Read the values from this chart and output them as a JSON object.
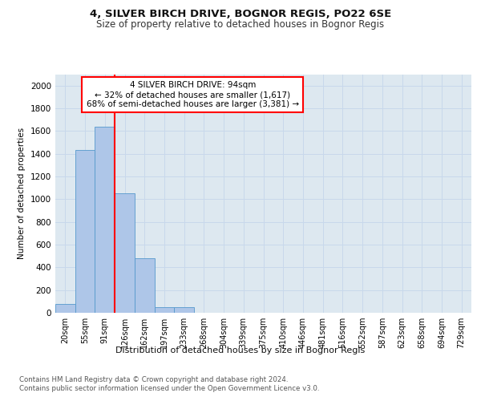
{
  "title1": "4, SILVER BIRCH DRIVE, BOGNOR REGIS, PO22 6SE",
  "title2": "Size of property relative to detached houses in Bognor Regis",
  "xlabel": "Distribution of detached houses by size in Bognor Regis",
  "ylabel": "Number of detached properties",
  "bin_labels": [
    "20sqm",
    "55sqm",
    "91sqm",
    "126sqm",
    "162sqm",
    "197sqm",
    "233sqm",
    "268sqm",
    "304sqm",
    "339sqm",
    "375sqm",
    "410sqm",
    "446sqm",
    "481sqm",
    "516sqm",
    "552sqm",
    "587sqm",
    "623sqm",
    "658sqm",
    "694sqm",
    "729sqm"
  ],
  "bar_values": [
    75,
    1430,
    1640,
    1050,
    480,
    50,
    50,
    0,
    0,
    0,
    0,
    0,
    0,
    0,
    0,
    0,
    0,
    0,
    0,
    0,
    0
  ],
  "bar_color": "#aec6e8",
  "bar_edge_color": "#5599cc",
  "grid_color": "#c8d8eb",
  "bg_color": "#dde8f0",
  "vline_color": "red",
  "vline_pos": 2.5,
  "annotation_text": "4 SILVER BIRCH DRIVE: 94sqm\n← 32% of detached houses are smaller (1,617)\n68% of semi-detached houses are larger (3,381) →",
  "annotation_box_color": "white",
  "annotation_box_edge": "red",
  "ylim": [
    0,
    2100
  ],
  "yticks": [
    0,
    200,
    400,
    600,
    800,
    1000,
    1200,
    1400,
    1600,
    1800,
    2000
  ],
  "footer1": "Contains HM Land Registry data © Crown copyright and database right 2024.",
  "footer2": "Contains public sector information licensed under the Open Government Licence v3.0."
}
